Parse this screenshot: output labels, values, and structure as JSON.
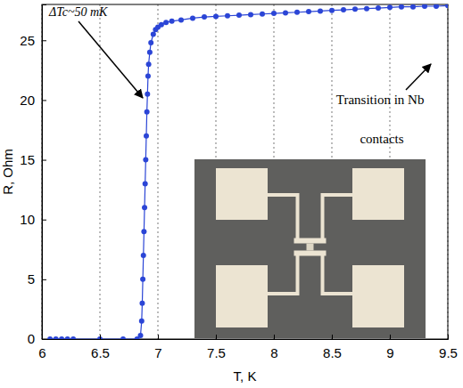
{
  "chart_data": {
    "type": "line",
    "marker": "circle",
    "color": "#2b45d6",
    "x_label": "T, K",
    "y_label": "R, Ohm",
    "annotations": [
      "ΔTc~50 mK",
      "Transition in Nb contacts"
    ],
    "x": [
      6.07,
      6.12,
      6.17,
      6.22,
      6.27,
      6.5,
      6.7,
      6.82,
      6.85,
      6.86,
      6.865,
      6.87,
      6.875,
      6.88,
      6.885,
      6.89,
      6.895,
      6.9,
      6.905,
      6.91,
      6.915,
      6.92,
      6.93,
      6.94,
      6.96,
      6.98,
      7.0,
      7.03,
      7.07,
      7.12,
      7.2,
      7.3,
      7.4,
      7.5,
      7.6,
      7.7,
      7.8,
      7.9,
      8.0,
      8.1,
      8.2,
      8.3,
      8.4,
      8.5,
      8.6,
      8.7,
      8.8,
      8.9,
      9.0,
      9.1,
      9.2,
      9.3,
      9.4,
      9.5
    ],
    "values": [
      0,
      0,
      0,
      0,
      0,
      0,
      0,
      0,
      0.3,
      1.5,
      3,
      5,
      7,
      9,
      11,
      13,
      15,
      17,
      19,
      20.5,
      22,
      23,
      24,
      24.8,
      25.5,
      25.9,
      26.1,
      26.3,
      26.5,
      26.6,
      26.7,
      26.85,
      26.95,
      27.0,
      27.05,
      27.1,
      27.15,
      27.2,
      27.25,
      27.3,
      27.35,
      27.4,
      27.45,
      27.5,
      27.55,
      27.6,
      27.65,
      27.7,
      27.75,
      27.8,
      27.8,
      27.85,
      27.85,
      27.9
    ],
    "xlim": [
      6,
      9.5
    ],
    "ylim": [
      0,
      28
    ],
    "xticks": [
      6,
      6.5,
      7,
      7.5,
      8,
      8.5,
      9,
      9.5
    ],
    "yticks": [
      0,
      5,
      10,
      15,
      20,
      25
    ],
    "grid": true
  }
}
